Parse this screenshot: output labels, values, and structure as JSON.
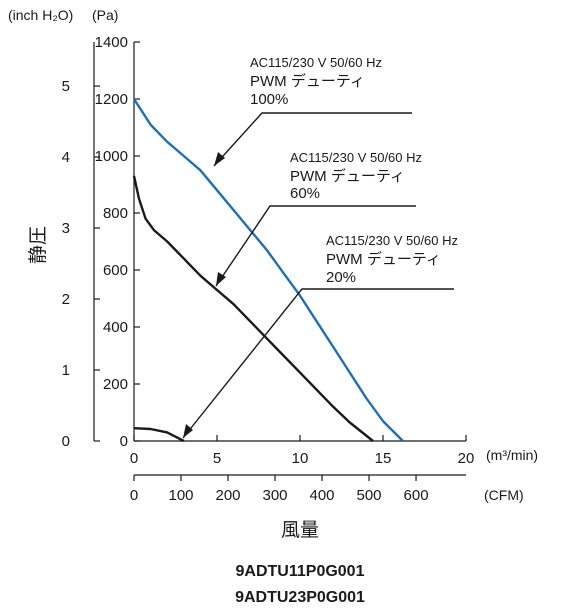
{
  "chart_data": {
    "type": "line",
    "title": "",
    "xlabel": "風量",
    "ylabel": "静圧",
    "x_unit": "(m³/min)",
    "x_unit_secondary": "(CFM)",
    "y_unit": "(Pa)",
    "y_unit_secondary": "(inch H₂O)",
    "xlim": [
      0,
      20
    ],
    "ylim": [
      0,
      1400
    ],
    "x_ticks": [
      "0",
      "5",
      "10",
      "15",
      "20"
    ],
    "x_ticks_secondary": [
      "0",
      "100",
      "200",
      "300",
      "400",
      "500",
      "600"
    ],
    "y_ticks": [
      "0",
      "200",
      "400",
      "600",
      "800",
      "1000",
      "1200",
      "1400"
    ],
    "y_ticks_secondary": [
      "0",
      "1",
      "2",
      "3",
      "4",
      "5"
    ],
    "grid": false,
    "series": [
      {
        "condition": "AC115/230 V  50/60 Hz",
        "label_line1": "PWM デューティ",
        "label_line2": "100%",
        "color": "#1f6fb5",
        "points": [
          [
            0,
            1200
          ],
          [
            1,
            1110
          ],
          [
            2,
            1050
          ],
          [
            3,
            1000
          ],
          [
            4,
            950
          ],
          [
            5,
            880
          ],
          [
            6,
            810
          ],
          [
            7,
            740
          ],
          [
            8,
            670
          ],
          [
            9,
            590
          ],
          [
            10,
            510
          ],
          [
            11,
            420
          ],
          [
            12,
            330
          ],
          [
            13,
            240
          ],
          [
            14,
            150
          ],
          [
            15,
            70
          ],
          [
            16.2,
            0
          ]
        ]
      },
      {
        "condition": "AC115/230 V  50/60 Hz",
        "label_line1": "PWM デューティ",
        "label_line2": "60%",
        "color": "#1a1a1a",
        "points": [
          [
            0,
            930
          ],
          [
            0.3,
            850
          ],
          [
            0.7,
            780
          ],
          [
            1.2,
            740
          ],
          [
            2,
            700
          ],
          [
            3,
            640
          ],
          [
            4,
            580
          ],
          [
            5,
            530
          ],
          [
            6,
            480
          ],
          [
            7,
            420
          ],
          [
            8,
            360
          ],
          [
            9,
            300
          ],
          [
            10,
            240
          ],
          [
            11,
            180
          ],
          [
            12,
            120
          ],
          [
            13,
            65
          ],
          [
            14.4,
            0
          ]
        ]
      },
      {
        "condition": "AC115/230 V  50/60 Hz",
        "label_line1": "PWM デューティ",
        "label_line2": "20%",
        "color": "#1a1a1a",
        "points": [
          [
            0,
            45
          ],
          [
            1,
            42
          ],
          [
            2,
            30
          ],
          [
            2.5,
            15
          ],
          [
            3,
            0
          ]
        ]
      }
    ]
  },
  "models": [
    "9ADTU11P0G001",
    "9ADTU23P0G001"
  ]
}
